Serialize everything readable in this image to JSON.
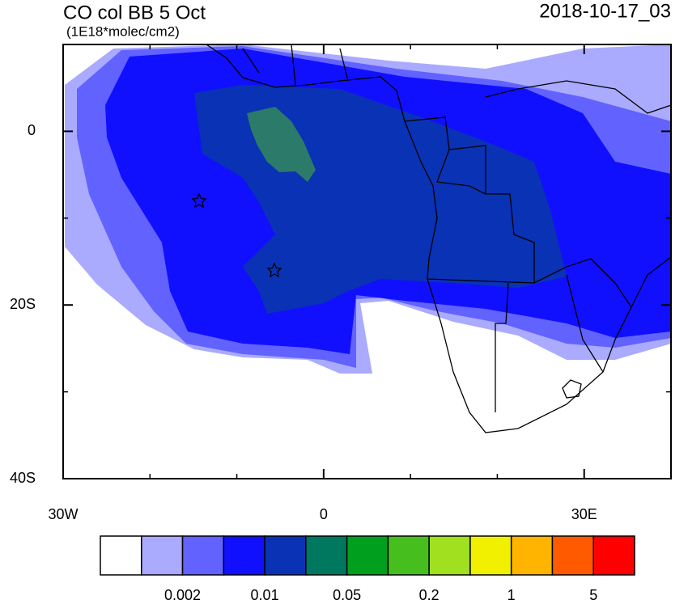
{
  "map": {
    "title": "CO col BB 5 Oct",
    "subtitle": "(1E18*molec/cm2)",
    "date": "2018-10-17_03",
    "xlim": [
      -30,
      40
    ],
    "ylim": [
      -40,
      10
    ],
    "xticks": [
      {
        "value": -30,
        "label": "30W"
      },
      0,
      {
        "value": 30,
        "label": "30E"
      }
    ],
    "yticks": [
      0,
      {
        "value": -20,
        "label": "20S"
      },
      {
        "value": -40,
        "label": "40S"
      }
    ],
    "xticks_minor": [
      -20,
      -10,
      10,
      20,
      40
    ],
    "yticks_minor": [
      -30,
      -10,
      10
    ],
    "colorbar": {
      "colors": [
        "#ffffff",
        "#aaaaff",
        "#6262ff",
        "#1010ff",
        "#0a32b4",
        "#007860",
        "#00a01e",
        "#46be1e",
        "#a0e01e",
        "#f0f000",
        "#ffb400",
        "#ff5a00",
        "#ff0000"
      ],
      "labels": [
        "0.002",
        "0.01",
        "0.05",
        "0.2",
        "1",
        "5"
      ]
    }
  }
}
